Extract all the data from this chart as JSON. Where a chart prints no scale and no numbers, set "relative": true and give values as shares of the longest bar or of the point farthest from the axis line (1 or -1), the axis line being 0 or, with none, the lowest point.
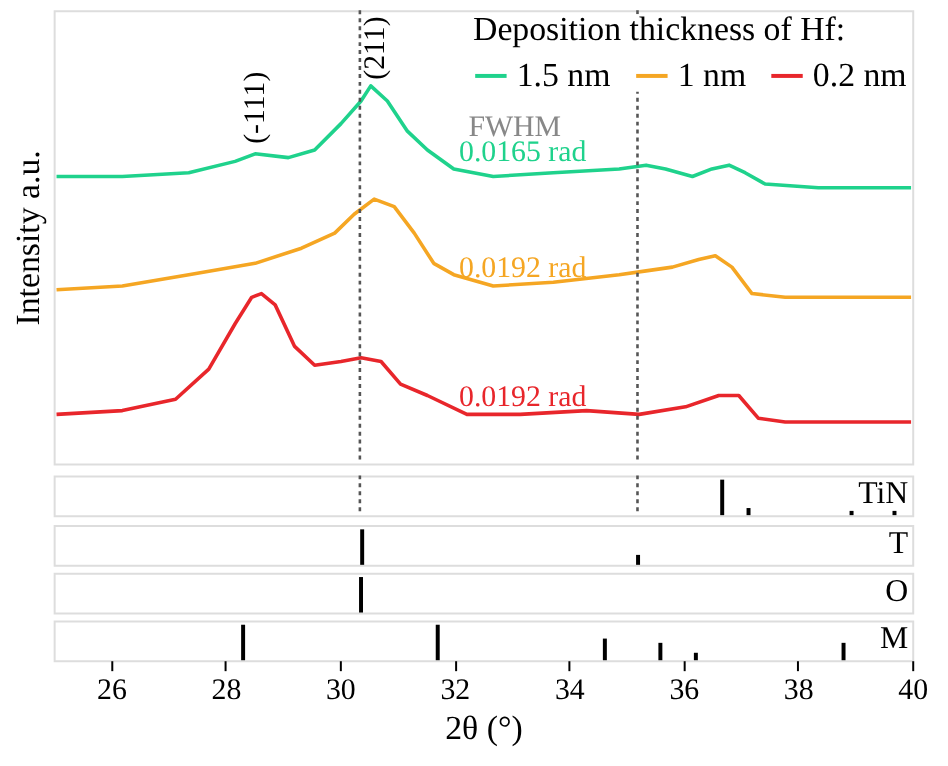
{
  "chart_data": [
    {
      "type": "line",
      "xlim": [
        25,
        40
      ],
      "xticks": [
        26,
        28,
        30,
        32,
        34,
        36,
        38,
        40
      ],
      "tick_labels": false,
      "relative": true,
      "ylabel": "Intensity a.u.",
      "legend_title": "Deposition thickness of Hf:",
      "legend": "top right",
      "grid": false,
      "marker": "none",
      "line_style": "solid",
      "series": [
        {
          "name": "1.5 nm",
          "color": "#1fd28c",
          "x": [
            25.05,
            26.2,
            27.36,
            28.17,
            28.52,
            29.1,
            29.56,
            30.02,
            30.37,
            30.54,
            30.83,
            31.18,
            31.53,
            31.99,
            32.68,
            33.73,
            34.88,
            35.35,
            35.69,
            36.16,
            36.5,
            36.8,
            37.08,
            37.43,
            38.36,
            39.98
          ],
          "values": [
            0.76,
            0.76,
            0.77,
            0.8,
            0.82,
            0.81,
            0.83,
            0.9,
            0.96,
            1.0,
            0.96,
            0.88,
            0.83,
            0.78,
            0.76,
            0.77,
            0.78,
            0.79,
            0.78,
            0.76,
            0.78,
            0.79,
            0.77,
            0.74,
            0.73,
            0.73
          ]
        },
        {
          "name": "1 nm",
          "color": "#f5a623",
          "x": [
            25.05,
            26.2,
            27.36,
            28.52,
            29.33,
            29.91,
            30.25,
            30.6,
            30.95,
            31.3,
            31.64,
            31.99,
            32.68,
            33.73,
            34.88,
            35.35,
            35.81,
            36.27,
            36.56,
            36.85,
            37.2,
            37.78,
            39.98
          ],
          "values": [
            0.46,
            0.47,
            0.5,
            0.53,
            0.57,
            0.61,
            0.66,
            0.7,
            0.68,
            0.61,
            0.53,
            0.5,
            0.47,
            0.48,
            0.5,
            0.51,
            0.52,
            0.54,
            0.55,
            0.52,
            0.45,
            0.44,
            0.44
          ]
        },
        {
          "name": "0.2 nm",
          "color": "#e8262b",
          "x": [
            25.05,
            26.2,
            27.13,
            27.71,
            28.17,
            28.46,
            28.63,
            28.87,
            29.21,
            29.56,
            30.02,
            30.37,
            30.72,
            31.06,
            31.53,
            32.22,
            33.15,
            34.31,
            35.23,
            36.04,
            36.62,
            36.97,
            37.31,
            37.78,
            39.98
          ],
          "values": [
            0.13,
            0.14,
            0.17,
            0.25,
            0.37,
            0.44,
            0.45,
            0.42,
            0.31,
            0.26,
            0.27,
            0.28,
            0.27,
            0.21,
            0.18,
            0.13,
            0.13,
            0.14,
            0.13,
            0.15,
            0.18,
            0.18,
            0.12,
            0.11,
            0.11
          ]
        }
      ],
      "ref_lines": [
        {
          "axis": "x",
          "value": 30.35,
          "color": "#555555",
          "line_style": "dotted"
        },
        {
          "axis": "x",
          "value": 35.2,
          "color": "#555555",
          "line_style": "dotted"
        }
      ],
      "annotations": [
        "(-111)",
        "(211)",
        "FWHM",
        "0.0165 rad",
        "0.0192 rad",
        "0.0192 rad"
      ]
    },
    {
      "type": "bar",
      "xlim": [
        25,
        40
      ],
      "tick_labels": false,
      "relative": true,
      "series": [
        {
          "name": "TiN",
          "color": "#000000",
          "x": [
            36.68,
            37.14,
            38.94,
            39.69
          ],
          "values": [
            1,
            0.2,
            0.12,
            0.12
          ]
        }
      ],
      "ref_lines": [
        {
          "axis": "x",
          "value": 30.35,
          "color": "#555555",
          "line_style": "dotted"
        },
        {
          "axis": "x",
          "value": 35.2,
          "color": "#555555",
          "line_style": "dotted"
        }
      ]
    },
    {
      "type": "bar",
      "xlim": [
        25,
        40
      ],
      "tick_labels": false,
      "relative": true,
      "series": [
        {
          "name": "T",
          "color": "#000000",
          "x": [
            30.39,
            35.21
          ],
          "values": [
            1,
            0.28
          ]
        }
      ]
    },
    {
      "type": "bar",
      "xlim": [
        25,
        40
      ],
      "tick_labels": false,
      "relative": true,
      "series": [
        {
          "name": "O",
          "color": "#000000",
          "x": [
            30.37
          ],
          "values": [
            1
          ]
        }
      ]
    },
    {
      "type": "bar",
      "xlim": [
        25,
        40
      ],
      "xticks": [
        26,
        28,
        30,
        32,
        34,
        36,
        38,
        40
      ],
      "tick_labels": "x",
      "relative": true,
      "xlabel": "2θ (°)",
      "series": [
        {
          "name": "M",
          "color": "#000000",
          "x": [
            28.31,
            31.71,
            34.63,
            35.6,
            36.22,
            38.8
          ],
          "values": [
            1,
            1,
            0.61,
            0.49,
            0.21,
            0.49
          ]
        }
      ]
    }
  ]
}
